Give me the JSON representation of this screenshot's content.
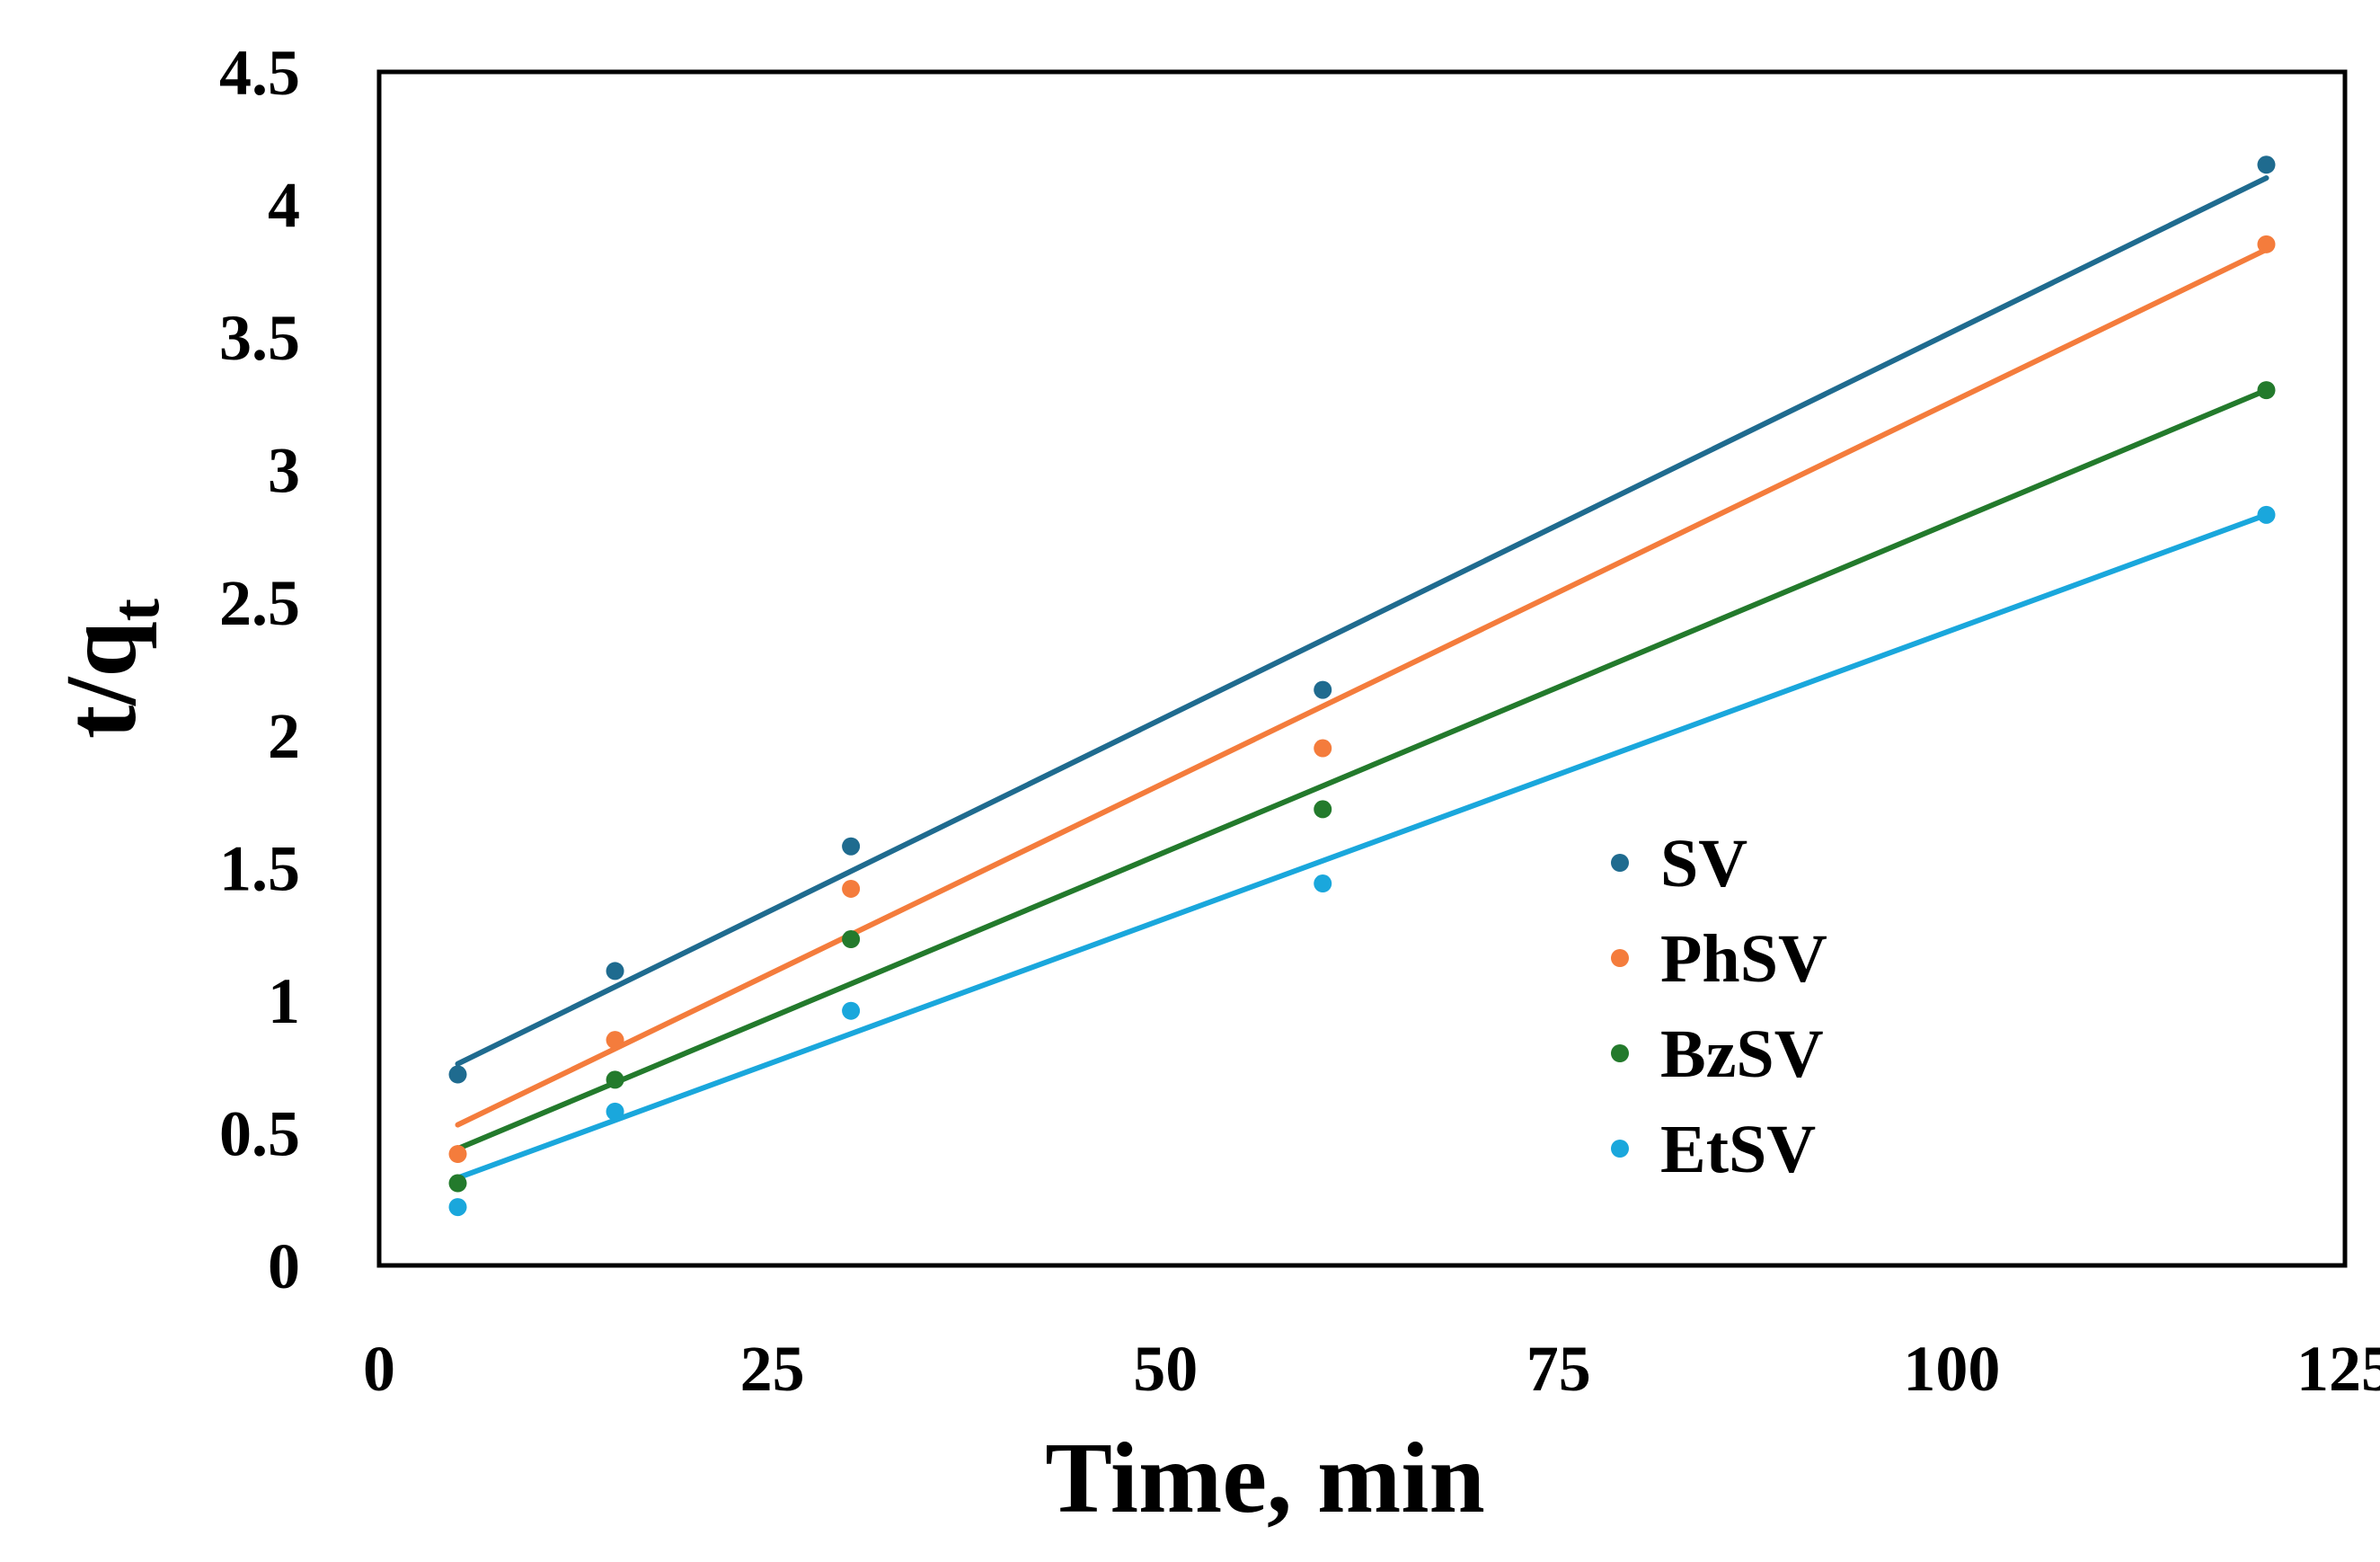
{
  "chart_data": {
    "type": "scatter",
    "title": "",
    "xlabel": "Time, min",
    "ylabel_main": "t/q",
    "ylabel_sub": "t",
    "xlim": [
      0,
      125
    ],
    "ylim": [
      0,
      4.5
    ],
    "x_ticks": [
      0,
      25,
      50,
      75,
      100,
      125
    ],
    "x_tick_labels": [
      "0",
      "25",
      "50",
      "75",
      "100",
      "125"
    ],
    "y_ticks": [
      0,
      0.5,
      1,
      1.5,
      2,
      2.5,
      3,
      3.5,
      4,
      4.5
    ],
    "y_tick_labels": [
      "0",
      "0.5",
      "1",
      "1.5",
      "2",
      "2.5",
      "3",
      "3.5",
      "4",
      "4.5"
    ],
    "grid": false,
    "legend_position": "center-right",
    "x": [
      5,
      15,
      30,
      60,
      120
    ],
    "series": [
      {
        "name": "SV",
        "color": "#1f6b8f",
        "values": [
          0.72,
          1.11,
          1.58,
          2.17,
          4.15
        ],
        "fit": {
          "start": [
            5,
            0.76
          ],
          "end": [
            120,
            4.1
          ]
        }
      },
      {
        "name": "PhSV",
        "color": "#f47c3c",
        "values": [
          0.42,
          0.85,
          1.42,
          1.95,
          3.85
        ],
        "fit": {
          "start": [
            5,
            0.53
          ],
          "end": [
            120,
            3.83
          ]
        }
      },
      {
        "name": "BzSV",
        "color": "#237a2c",
        "values": [
          0.31,
          0.7,
          1.23,
          1.72,
          3.3
        ],
        "fit": {
          "start": [
            5,
            0.44
          ],
          "end": [
            120,
            3.3
          ]
        }
      },
      {
        "name": "EtSV",
        "color": "#1aa7dc",
        "values": [
          0.22,
          0.58,
          0.96,
          1.44,
          2.83
        ],
        "fit": {
          "start": [
            5,
            0.33
          ],
          "end": [
            120,
            2.83
          ]
        }
      }
    ]
  }
}
